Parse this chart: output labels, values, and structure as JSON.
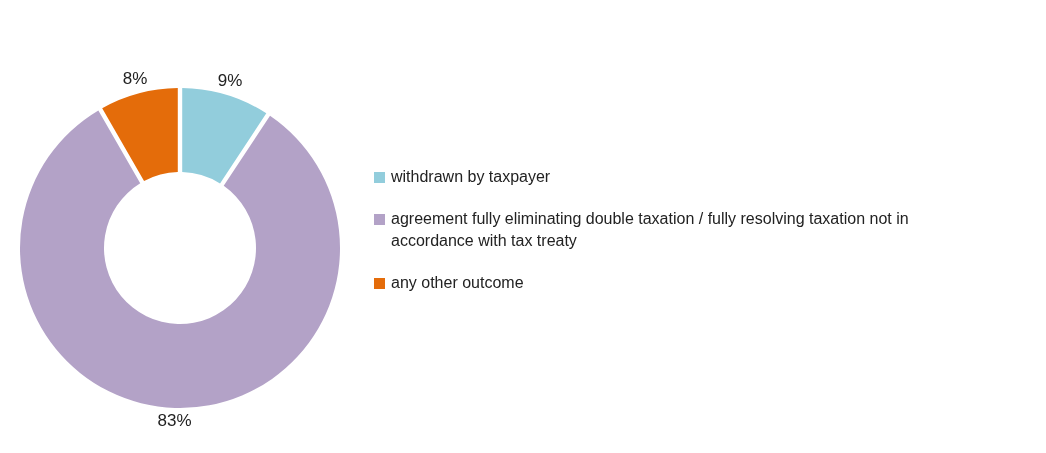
{
  "chart_data": {
    "type": "donut",
    "categories": [
      "withdrawn by taxpayer",
      "agreement fully eliminating double taxation / fully resolving taxation not in accordance with tax treaty",
      "any other outcome"
    ],
    "values": [
      9,
      83,
      8
    ],
    "value_labels": [
      "9%",
      "83%",
      "8%"
    ],
    "colors": [
      "#92cddc",
      "#b3a2c7",
      "#e46c0a"
    ],
    "legend": "right"
  }
}
